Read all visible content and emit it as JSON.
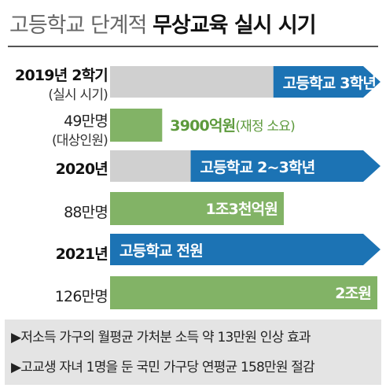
{
  "header": {
    "title_part1": "고등학교 단계적",
    "title_part2": "무상교육 실시 시기"
  },
  "rows": [
    {
      "year": "2019년 2학기",
      "year_sub": "(실시 시기)",
      "stage": "고등학교 3학년",
      "people": "49만명",
      "people_sub": "(대상인원)",
      "budget": "3900억원",
      "budget_note": "(재정 소요)"
    },
    {
      "year": "2020년",
      "stage": "고등학교 2~3학년",
      "people": "88만명",
      "budget": "1조3천억원"
    },
    {
      "year": "2021년",
      "stage": "고등학교 전원",
      "people": "126만명",
      "budget": "2조원"
    }
  ],
  "chart_data": {
    "type": "bar",
    "categories": [
      "2019년 2학기",
      "2020년",
      "2021년"
    ],
    "series": [
      {
        "name": "재정 소요",
        "values": [
          3900,
          13000,
          20000
        ]
      },
      {
        "name": "대상인원",
        "values": [
          49,
          88,
          126
        ]
      }
    ],
    "value_units": [
      "억원",
      "만명"
    ]
  },
  "footer": {
    "notes": [
      "▶저소득 가구의 월평균 가처분 소득 약 13만원 인상 효과",
      "▶고교생 자녀 1명을 둔 국민 가구당 연평균 158만원 절감"
    ]
  },
  "colors": {
    "arrow_blue": "#1c73b4",
    "bar_green": "#82b366",
    "grey": "#d0d0d0",
    "footer_bg": "#e4e4e4"
  }
}
